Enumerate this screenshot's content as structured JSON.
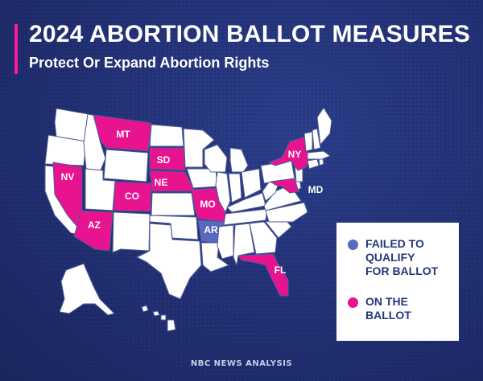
{
  "header": {
    "title": "2024 ABORTION BALLOT MEASURES",
    "subtitle": "Protect Or Expand Abortion Rights"
  },
  "colors": {
    "on_ballot": "#e8138f",
    "failed": "#5a68c0",
    "other_state": "#ffffff",
    "accent": "#ff1a9c"
  },
  "map": {
    "on_ballot_states": [
      "MT",
      "NV",
      "SD",
      "NE",
      "CO",
      "AZ",
      "MO",
      "NY",
      "MD",
      "FL"
    ],
    "failed_states": [
      "AR"
    ],
    "labels": {
      "MT": "MT",
      "SD": "SD",
      "NV": "NV",
      "NE": "NE",
      "CO": "CO",
      "AZ": "AZ",
      "MO": "MO",
      "AR": "AR",
      "NY": "NY",
      "MD": "MD",
      "FL": "FL"
    }
  },
  "legend": {
    "items": [
      {
        "label": "FAILED TO\nQUALIFY\nFOR BALLOT",
        "color": "#5a68c0"
      },
      {
        "label": "ON THE\nBALLOT",
        "color": "#e8138f"
      }
    ]
  },
  "footer": {
    "source": "NBC NEWS ANALYSIS"
  }
}
